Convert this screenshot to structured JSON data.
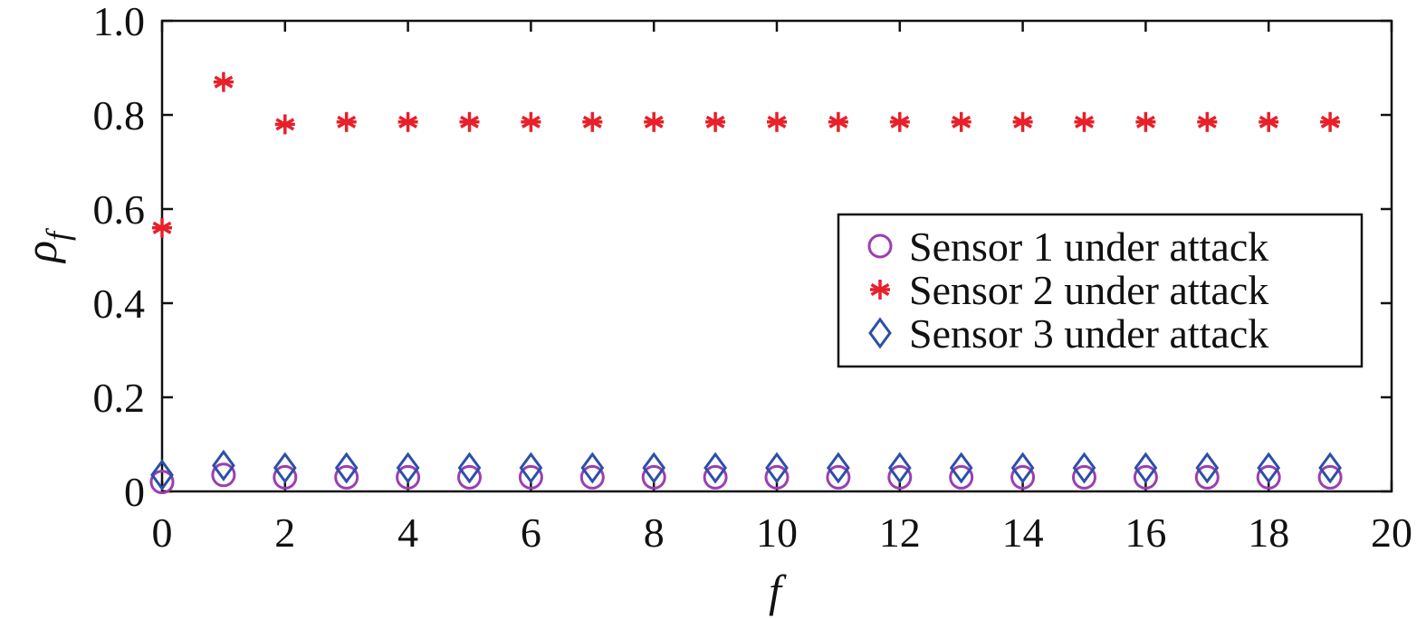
{
  "chart_data": {
    "type": "scatter",
    "title": "",
    "xlabel": "f",
    "ylabel_main": "ρ",
    "ylabel_sub": "f",
    "xlim": [
      0,
      20
    ],
    "ylim": [
      0,
      1
    ],
    "xticks": [
      0,
      2,
      4,
      6,
      8,
      10,
      12,
      14,
      16,
      18,
      20
    ],
    "xtick_labels": [
      "0",
      "2",
      "4",
      "6",
      "8",
      "10",
      "12",
      "14",
      "16",
      "18",
      "20"
    ],
    "yticks": [
      0,
      0.2,
      0.4,
      0.6,
      0.8,
      1.0
    ],
    "ytick_labels": [
      "0",
      "0.2",
      "0.4",
      "0.6",
      "0.8",
      "1.0"
    ],
    "grid": false,
    "legend_position": "right",
    "x": [
      0,
      1,
      2,
      3,
      4,
      5,
      6,
      7,
      8,
      9,
      10,
      11,
      12,
      13,
      14,
      15,
      16,
      17,
      18,
      19
    ],
    "series": [
      {
        "name": "Sensor 1 under attack",
        "marker": "circle",
        "color": "#9b3fb0",
        "values": [
          0.02,
          0.035,
          0.03,
          0.03,
          0.03,
          0.03,
          0.03,
          0.03,
          0.03,
          0.03,
          0.03,
          0.03,
          0.03,
          0.03,
          0.03,
          0.03,
          0.03,
          0.03,
          0.03,
          0.03
        ]
      },
      {
        "name": "Sensor 2 under attack",
        "marker": "asterisk",
        "color": "#e8202a",
        "values": [
          0.56,
          0.87,
          0.78,
          0.785,
          0.785,
          0.785,
          0.785,
          0.785,
          0.785,
          0.785,
          0.785,
          0.785,
          0.785,
          0.785,
          0.785,
          0.785,
          0.785,
          0.785,
          0.785,
          0.785
        ]
      },
      {
        "name": "Sensor 3 under attack",
        "marker": "diamond",
        "color": "#2d4fa8",
        "values": [
          0.035,
          0.055,
          0.05,
          0.05,
          0.05,
          0.05,
          0.05,
          0.05,
          0.05,
          0.05,
          0.05,
          0.05,
          0.05,
          0.05,
          0.05,
          0.05,
          0.05,
          0.05,
          0.05,
          0.05
        ]
      }
    ]
  }
}
